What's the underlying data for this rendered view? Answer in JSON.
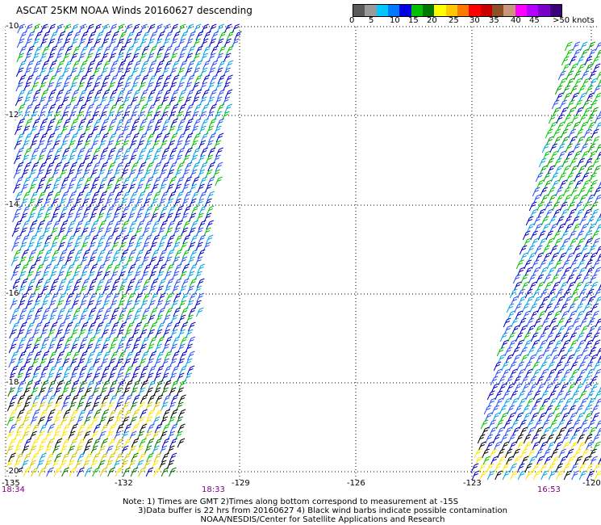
{
  "title": "ASCAT 25KM NOAA Winds 20160627 descending",
  "legend": {
    "colors": [
      "#5a5a5a",
      "#9a9a9a",
      "#00c8ff",
      "#0078ff",
      "#0000e0",
      "#00c000",
      "#007800",
      "#ffff00",
      "#ffc800",
      "#ff7800",
      "#ff0000",
      "#c80000",
      "#8c5028",
      "#c89678",
      "#ff00ff",
      "#b400ff",
      "#7800c8",
      "#3c0078"
    ],
    "labels": [
      "0",
      "5",
      "10",
      "15",
      "20",
      "25",
      "30",
      "35",
      "40",
      "45",
      ">50 knots"
    ]
  },
  "lat_labels": [
    "-10",
    "-12",
    "-14",
    "-16",
    "-18",
    "-20"
  ],
  "lon_labels": [
    "-135",
    "-132",
    "-129",
    "-126",
    "-123",
    "-120"
  ],
  "time_labels": [
    "18:34",
    "18:33",
    "16:53"
  ],
  "notes": [
    "Note: 1) Times are GMT 2)Times along bottom correspond to measurement at -15S",
    "3)Data buffer is 22 hrs from 20160627 4) Black wind barbs indicate possible contamination",
    "NOAA/NESDIS/Center for Satellite Applications and Research"
  ]
}
